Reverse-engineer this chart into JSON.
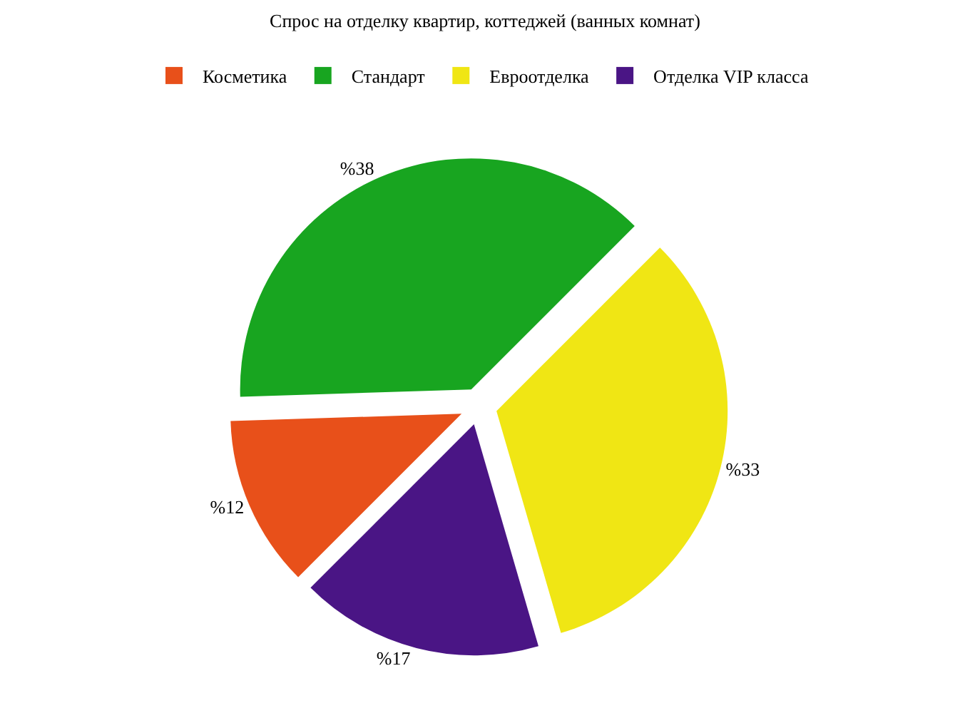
{
  "chart_data": {
    "type": "pie",
    "title": "Спрос на отделку квартир, коттеджей (ванных комнат)",
    "categories": [
      "Косметика",
      "Стандарт",
      "Евроотделка",
      "Отделка VIP класса"
    ],
    "values": [
      12,
      38,
      33,
      17
    ],
    "colors": [
      "#e8501a",
      "#18a520",
      "#f0e614",
      "#4a1585"
    ],
    "value_labels": [
      "%12",
      "%38",
      "%33",
      "%17"
    ],
    "legend": "top left"
  }
}
